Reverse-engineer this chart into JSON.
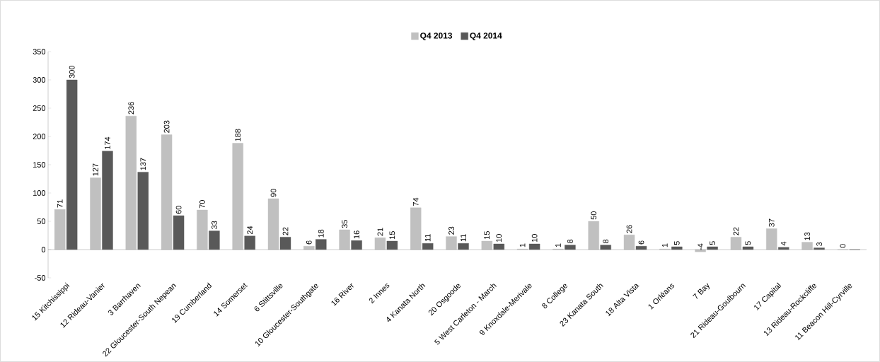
{
  "chart_data": {
    "type": "bar",
    "categories": [
      "15 Kitchissippi",
      "12 Rideau-Vanier",
      "3 Barrhaven",
      "22 Gloucester-South Nepean",
      "19 Cumberland",
      "14 Somerset",
      "6 Stittsville",
      "10 Gloucester-Southgate",
      "16 River",
      "2 Innes",
      "4 Kanata North",
      "20 Osgoode",
      "5 West Carleton - March",
      "9 Knoxdale-Merivale",
      "8 College",
      "23 Kanata South",
      "18 Alta Vista",
      "1 Orléans",
      "7 Bay",
      "21 Rideau-Goulbourn",
      "17 Capital",
      "13 Rideau-Rockcliffe",
      "11 Beacon Hill-Cyrville"
    ],
    "series": [
      {
        "name": "Q4 2013",
        "color": "#c0c0c0",
        "values": [
          71,
          127,
          236,
          203,
          70,
          188,
          90,
          6,
          35,
          21,
          74,
          23,
          15,
          1,
          1,
          50,
          26,
          1,
          -4,
          22,
          37,
          13,
          0
        ],
        "value_labels": [
          "71",
          "127",
          "236",
          "203",
          "70",
          "188",
          "90",
          "6",
          "35",
          "21",
          "74",
          "23",
          "15",
          "1",
          "1",
          "50",
          "26",
          "1",
          "-4",
          "22",
          "37",
          "13",
          "0"
        ]
      },
      {
        "name": "Q4 2014",
        "color": "#595959",
        "values": [
          300,
          174,
          137,
          60,
          33,
          24,
          22,
          18,
          16,
          15,
          11,
          11,
          10,
          10,
          8,
          8,
          6,
          5,
          5,
          5,
          4,
          3,
          0
        ],
        "value_labels": [
          "300",
          "174",
          "137",
          "60",
          "33",
          "24",
          "22",
          "18",
          "16",
          "15",
          "11",
          "11",
          "10",
          "10",
          "8",
          "8",
          "6",
          "5",
          "5",
          "5",
          "4",
          "3",
          null
        ]
      }
    ],
    "ylim": [
      -50,
      350
    ],
    "yticks": [
      -50,
      0,
      50,
      100,
      150,
      200,
      250,
      300,
      350
    ],
    "legend": "top"
  }
}
